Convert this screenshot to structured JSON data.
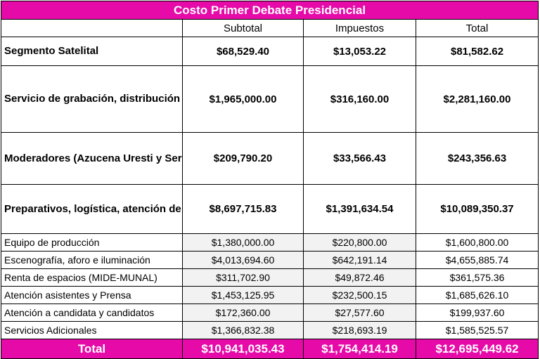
{
  "title": "Costo Primer Debate Presidencial",
  "headers": {
    "concept": "",
    "subtotal": "Subtotal",
    "impuestos": "Impuestos",
    "total": "Total"
  },
  "main_rows": [
    {
      "concept": "Segmento Satelital",
      "subtotal": "$68,529.40",
      "impuestos": "$13,053.22",
      "total": "$81,582.62"
    },
    {
      "concept": "Servicio de grabación, distribución y transmisión",
      "subtotal": "$1,965,000.00",
      "impuestos": "$316,160.00",
      "total": "$2,281,160.00"
    },
    {
      "concept": "Moderadores (Azucena Uresti y Sergio Sarmiento)",
      "subtotal": "$209,790.20",
      "impuestos": "$33,566.43",
      "total": "$243,356.63"
    },
    {
      "concept": "Preparativos, logística, atención de asistentes y medios de comunicación",
      "subtotal": "$8,697,715.83",
      "impuestos": "$1,391,634.54",
      "total": "$10,089,350.37"
    }
  ],
  "sub_rows": [
    {
      "concept": "Equipo de producción",
      "subtotal": "$1,380,000.00",
      "impuestos": "$220,800.00",
      "total": "$1,600,800.00"
    },
    {
      "concept": "Escenografía, aforo e iluminación",
      "subtotal": "$4,013,694.60",
      "impuestos": "$642,191.14",
      "total": "$4,655,885.74"
    },
    {
      "concept": "Renta de espacios (MIDE-MUNAL)",
      "subtotal": "$311,702.90",
      "impuestos": "$49,872.46",
      "total": "$361,575.36"
    },
    {
      "concept": "Atención asistentes y Prensa",
      "subtotal": "$1,453,125.95",
      "impuestos": "$232,500.15",
      "total": "$1,685,626.10"
    },
    {
      "concept": "Atención a candidata y candidatos",
      "subtotal": "$172,360.00",
      "impuestos": "$27,577.60",
      "total": "$199,937.60"
    },
    {
      "concept": "Servicios Adicionales",
      "subtotal": "$1,366,832.38",
      "impuestos": "$218,693.19",
      "total": "$1,585,525.57"
    }
  ],
  "total_row": {
    "label": "Total",
    "subtotal": "$10,941,035.43",
    "impuestos": "$1,754,414.19",
    "total": "$12,695,449.62"
  },
  "colors": {
    "accent": "#e60aa8",
    "subcell": "#f2f2f2"
  }
}
